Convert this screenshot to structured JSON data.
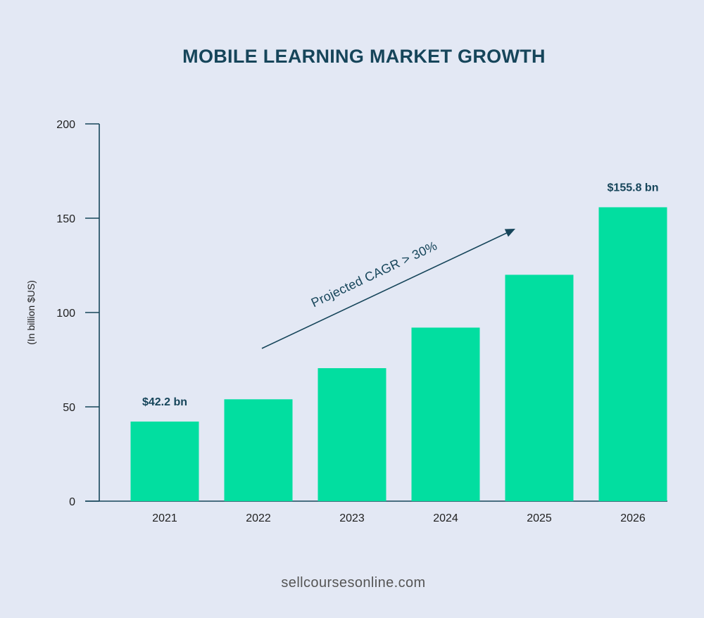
{
  "colors": {
    "background": "#e3e8f4",
    "bar": "#02dea0",
    "title": "#16455a",
    "axis": "#16455a",
    "data_label": "#16455a",
    "annotation": "#16455a",
    "footer": "#555555"
  },
  "footer": {
    "text": "sellcoursesonline.com"
  },
  "chart_data": {
    "type": "bar",
    "title": "MOBILE LEARNING MARKET GROWTH",
    "xlabel": "",
    "ylabel": "(In billion $US)",
    "categories": [
      "2021",
      "2022",
      "2023",
      "2024",
      "2025",
      "2026"
    ],
    "values": [
      42.2,
      54,
      70.5,
      92,
      120,
      155.8
    ],
    "ylim": [
      0,
      200
    ],
    "yticks": [
      0,
      50,
      100,
      150,
      200
    ],
    "grid": false,
    "legend": "none",
    "data_labels": [
      {
        "category": "2021",
        "text": "$42.2 bn"
      },
      {
        "category": "2026",
        "text": "$155.8 bn"
      }
    ],
    "annotations": [
      {
        "text": "Projected CAGR > 30%",
        "arrow": true
      }
    ]
  }
}
